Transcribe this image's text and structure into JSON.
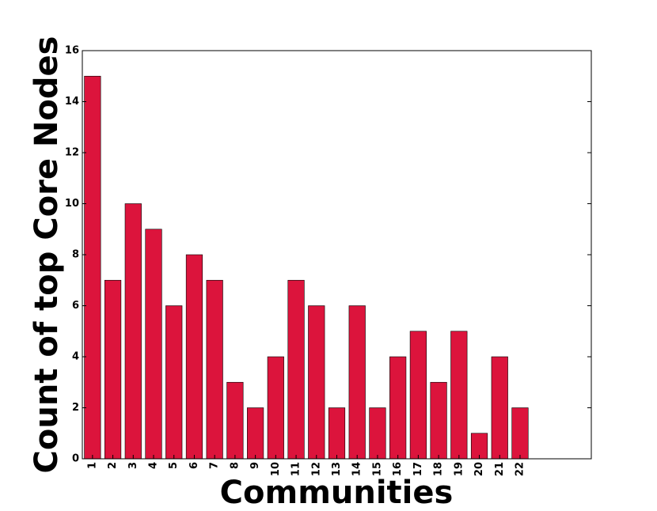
{
  "chart_data": {
    "type": "bar",
    "title": "",
    "xlabel": "Communities",
    "ylabel": "Count of top Core Nodes",
    "categories": [
      "1",
      "2",
      "3",
      "4",
      "5",
      "6",
      "7",
      "8",
      "9",
      "10",
      "11",
      "12",
      "13",
      "14",
      "15",
      "16",
      "17",
      "18",
      "19",
      "20",
      "21",
      "22"
    ],
    "values": [
      15,
      7,
      10,
      9,
      6,
      8,
      7,
      3,
      2,
      4,
      7,
      6,
      2,
      6,
      2,
      4,
      5,
      3,
      5,
      1,
      4,
      2
    ],
    "ylim": [
      0,
      16
    ],
    "yticks": [
      0,
      2,
      4,
      6,
      8,
      10,
      12,
      14,
      16
    ],
    "xlim": [
      0,
      25
    ],
    "grid": false,
    "legend": "none",
    "bar_color": "#dc143c",
    "bar_edge_color": "#000000"
  }
}
